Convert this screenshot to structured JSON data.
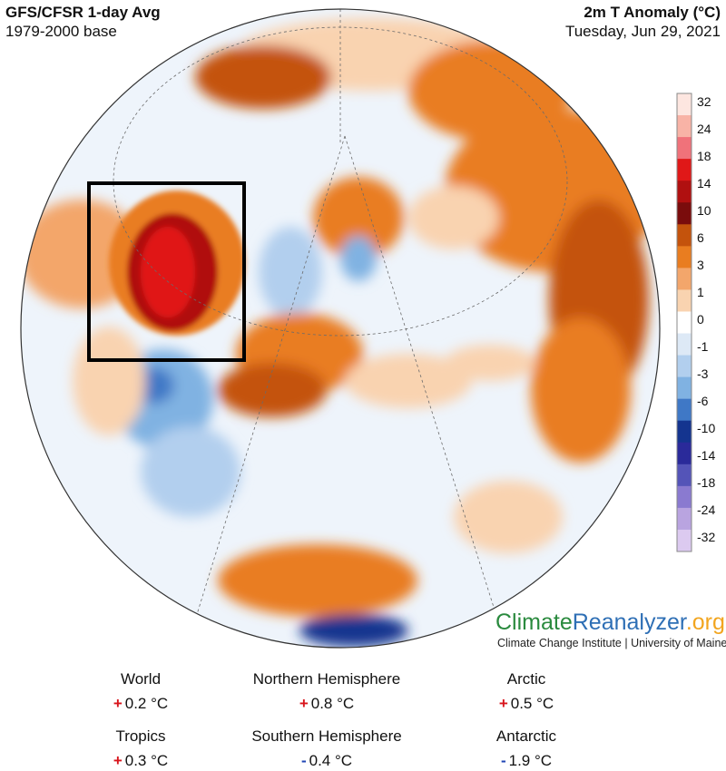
{
  "header": {
    "title": "GFS/CFSR 1-day Avg",
    "base": "1979-2000 base",
    "variable": "2m T Anomaly (°C)",
    "date": "Tuesday, Jun 29, 2021"
  },
  "colorbar": {
    "ticks": [
      "32",
      "24",
      "18",
      "14",
      "10",
      "6",
      "3",
      "1",
      "0",
      "-1",
      "-3",
      "-6",
      "-10",
      "-14",
      "-18",
      "-24",
      "-32"
    ],
    "colors": [
      "#fde6e0",
      "#f8b3a6",
      "#f0727a",
      "#e01818",
      "#b01010",
      "#7a0c0c",
      "#c4530c",
      "#e97d20",
      "#f3a66b",
      "#f9d3b0",
      "#ffffff",
      "#dde9f6",
      "#b2cfee",
      "#80b2e2",
      "#3f78c6",
      "#14348f",
      "#2a2a9a",
      "#5454b8",
      "#8a7ad0",
      "#b9a4e0",
      "#dccaf0"
    ]
  },
  "branding": {
    "logo_part1": "Climate",
    "logo_part2": "Reanalyzer",
    "logo_part3": ".org",
    "subtitle": "Climate Change Institute | University of Maine"
  },
  "stats": [
    {
      "label": "World",
      "sign": "+",
      "value": "0.2 °C"
    },
    {
      "label": "Northern Hemisphere",
      "sign": "+",
      "value": "0.8 °C"
    },
    {
      "label": "Arctic",
      "sign": "+",
      "value": "0.5 °C"
    },
    {
      "label": "Tropics",
      "sign": "+",
      "value": "0.3 °C"
    },
    {
      "label": "Southern Hemisphere",
      "sign": "-",
      "value": "0.4 °C"
    },
    {
      "label": "Antarctic",
      "sign": "-",
      "value": "1.9 °C"
    }
  ],
  "map": {
    "projection": "orthographic-north-pole",
    "highlight": "pacific-northwest-heatwave-box"
  }
}
